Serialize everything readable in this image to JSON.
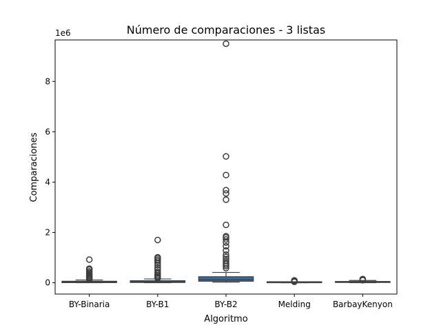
{
  "chart_data": {
    "type": "box",
    "title": "Número de comparaciones - 3 listas",
    "xlabel": "Algoritmo",
    "ylabel": "Comparaciones",
    "y_offset_label": "1e6",
    "ylim": [
      -0.45,
      9.65
    ],
    "yticks": [
      0,
      2,
      4,
      6,
      8
    ],
    "ytick_labels": [
      "0",
      "2",
      "4",
      "6",
      "8"
    ],
    "y_scale_multiplier": 1000000,
    "grid": false,
    "legend": "none",
    "box_color": "#3a6a9a",
    "outlier_marker": "open-circle",
    "categories": [
      "BY-Binaria",
      "BY-B1",
      "BY-B2",
      "Melding",
      "BarbayKenyon"
    ],
    "boxes": [
      {
        "name": "BY-Binaria",
        "whisker_low": 0.0,
        "q1": 0.005,
        "median": 0.03,
        "q3": 0.06,
        "whisker_high": 0.11,
        "outliers": [
          0.13,
          0.16,
          0.19,
          0.22,
          0.26,
          0.3,
          0.35,
          0.4,
          0.45,
          0.52,
          0.56,
          0.92
        ]
      },
      {
        "name": "BY-B1",
        "whisker_low": 0.0,
        "q1": 0.01,
        "median": 0.04,
        "q3": 0.08,
        "whisker_high": 0.15,
        "outliers": [
          0.18,
          0.22,
          0.26,
          0.31,
          0.37,
          0.43,
          0.52,
          0.6,
          0.7,
          0.78,
          0.86,
          0.92,
          0.98,
          1.01,
          1.7
        ]
      },
      {
        "name": "BY-B2",
        "whisker_low": 0.02,
        "q1": 0.06,
        "median": 0.12,
        "q3": 0.24,
        "whisker_high": 0.41,
        "outliers": [
          0.58,
          0.66,
          0.72,
          0.78,
          0.86,
          0.94,
          1.02,
          1.12,
          1.28,
          1.45,
          1.6,
          1.72,
          1.8,
          1.85,
          2.3,
          3.3,
          3.55,
          3.68,
          4.28,
          5.02,
          9.5
        ]
      },
      {
        "name": "Melding",
        "whisker_low": 0.0,
        "q1": 0.0,
        "median": 0.005,
        "q3": 0.012,
        "whisker_high": 0.025,
        "outliers": [
          0.035,
          0.05,
          0.065,
          0.08,
          0.095
        ]
      },
      {
        "name": "BarbayKenyon",
        "whisker_low": 0.0,
        "q1": 0.01,
        "median": 0.03,
        "q3": 0.05,
        "whisker_high": 0.09,
        "outliers": [
          0.1,
          0.115,
          0.13,
          0.145
        ]
      }
    ]
  }
}
